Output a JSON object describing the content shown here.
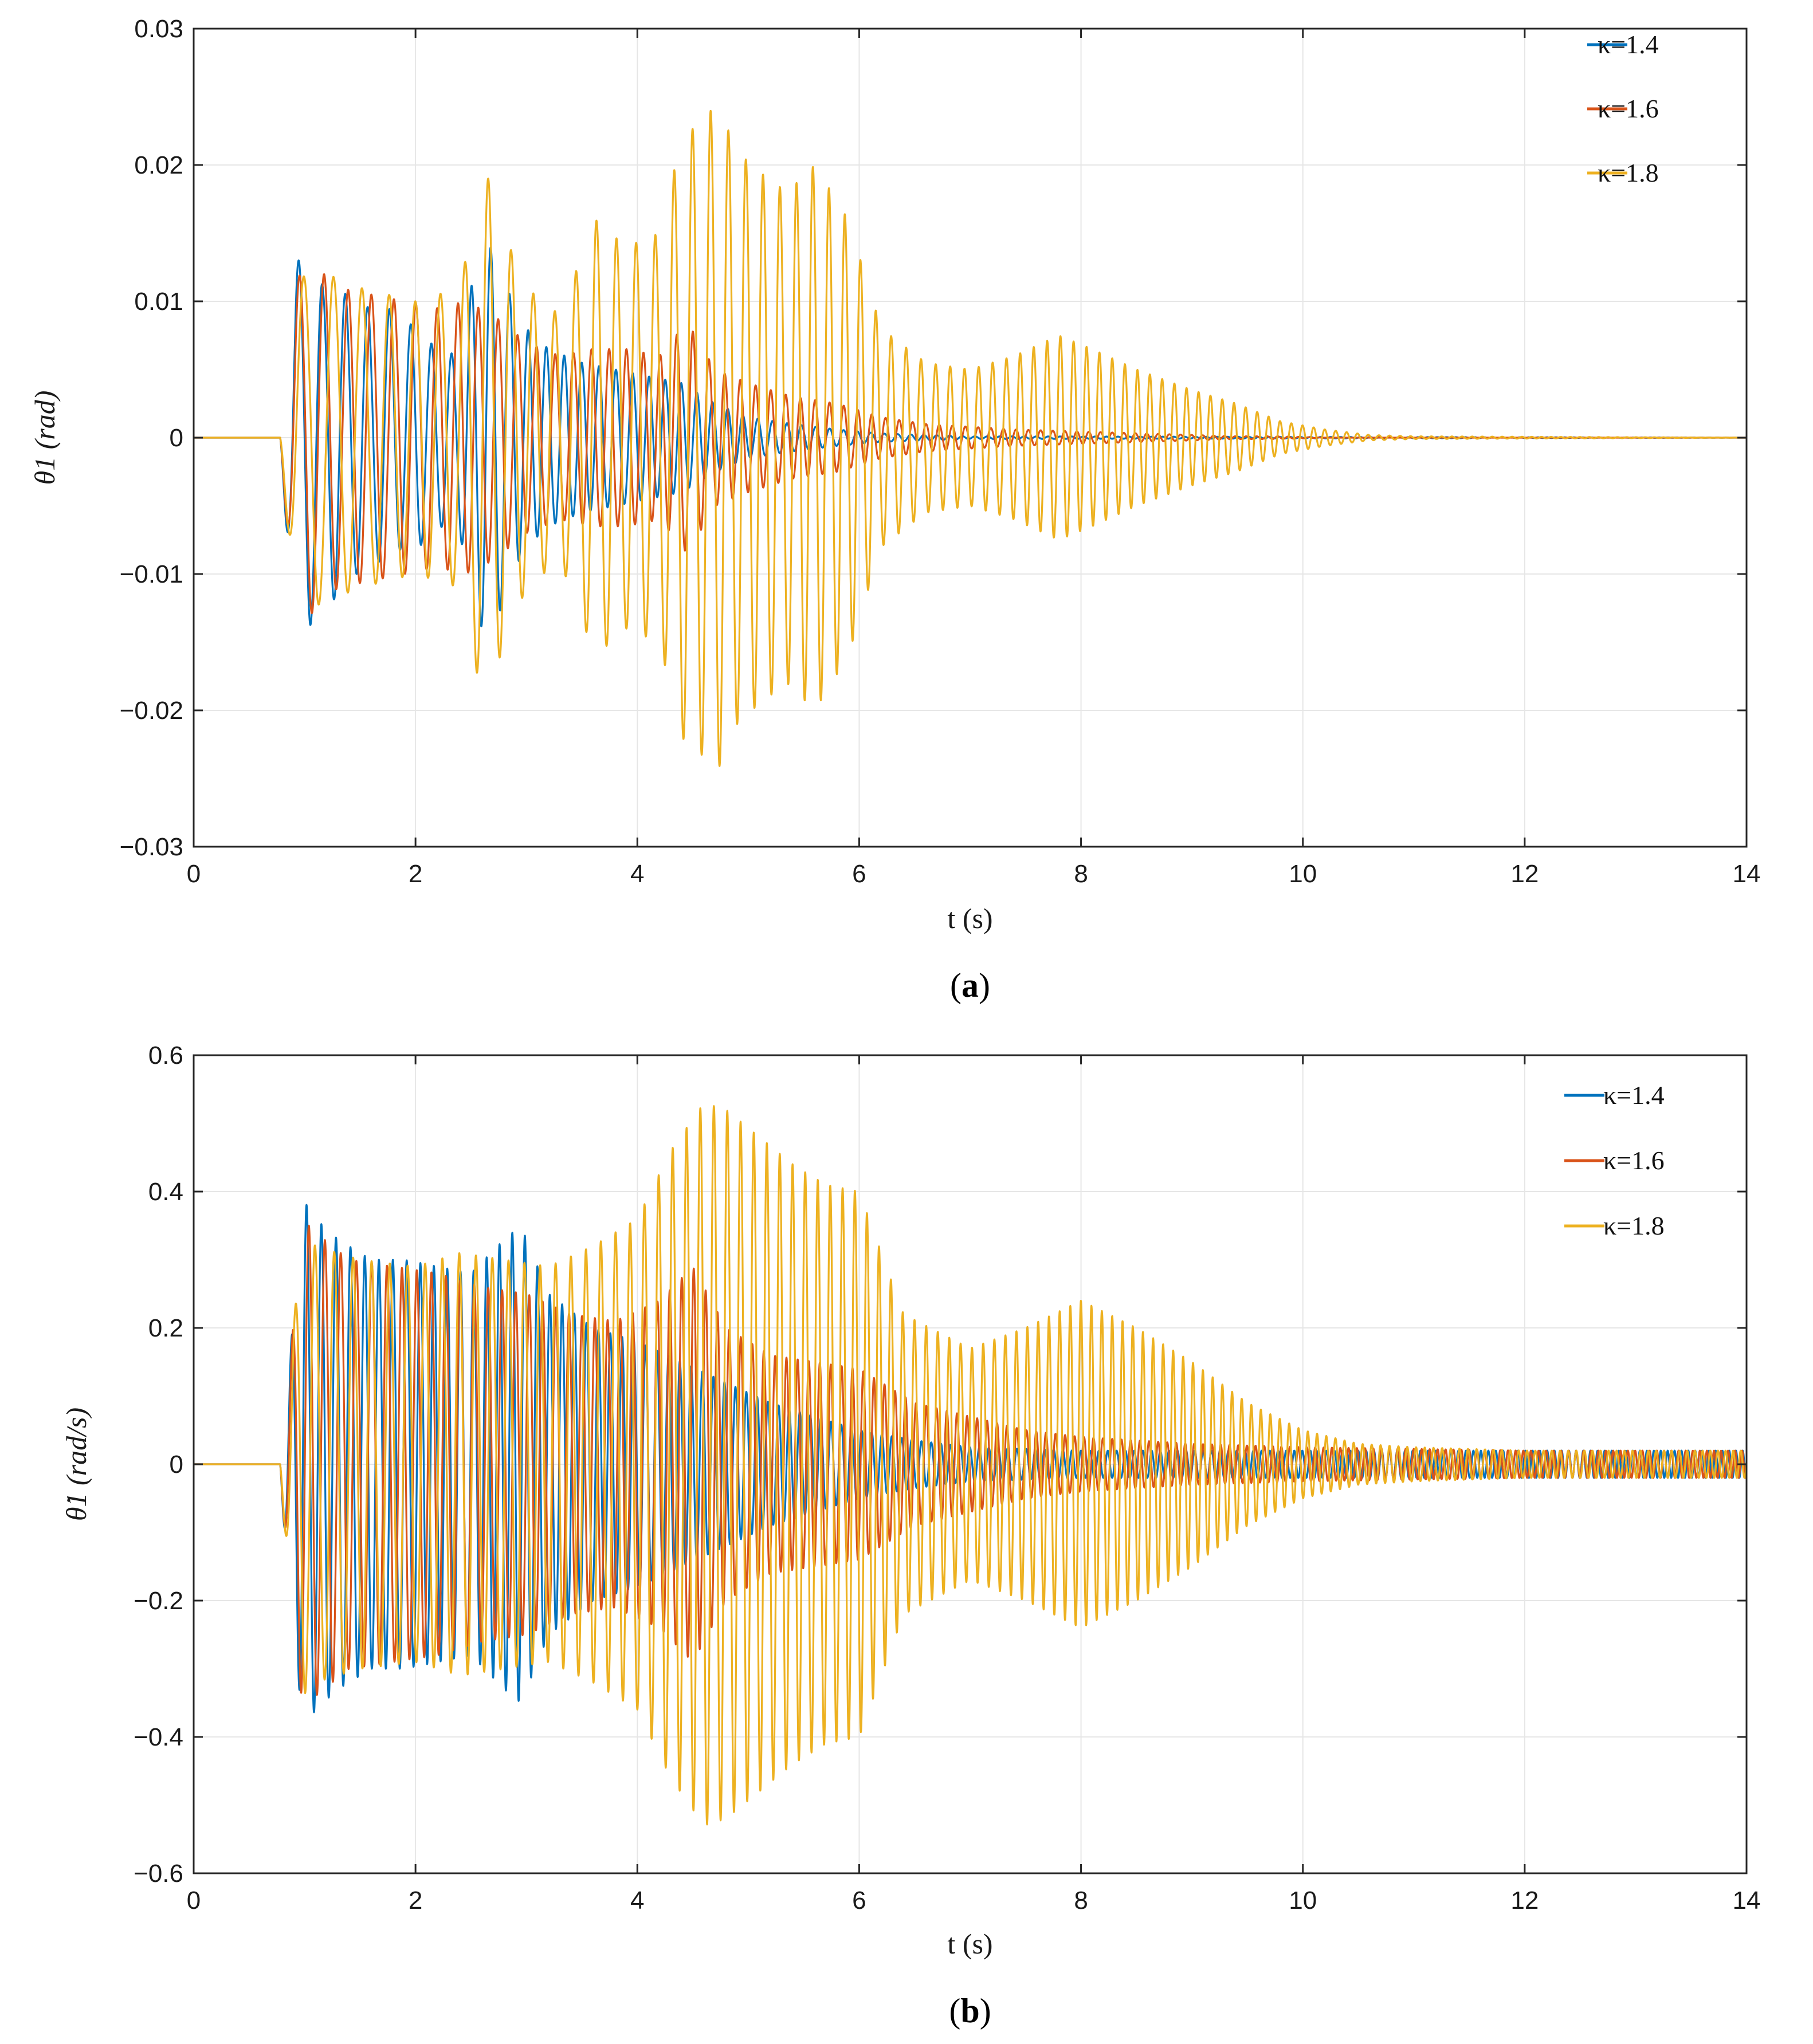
{
  "chart_data": [
    {
      "type": "line",
      "panel_label": "a",
      "title": "",
      "xlabel": "t (s)",
      "ylabel": "θ1 (rad)",
      "xlim": [
        0,
        14
      ],
      "ylim": [
        -0.03,
        0.03
      ],
      "xticks": [
        0,
        2,
        4,
        6,
        8,
        10,
        12,
        14
      ],
      "yticks": [
        -0.03,
        -0.02,
        -0.01,
        0,
        0.01,
        0.02,
        0.03
      ],
      "xtick_labels": [
        "0",
        "2",
        "4",
        "6",
        "8",
        "10",
        "12",
        "14"
      ],
      "ytick_labels": [
        "−0.03",
        "−0.02",
        "−0.01",
        "0",
        "0.01",
        "0.02",
        "0.03"
      ],
      "grid": true,
      "legend_position": "top-right",
      "series": [
        {
          "name": "κ=1.4",
          "color": "#0072BD",
          "t": [
            0.75,
            0.92,
            1.05,
            1.17,
            1.28,
            1.4,
            1.52,
            1.64,
            1.76,
            1.88,
            2.0,
            2.12,
            2.25,
            2.37,
            2.5,
            2.62,
            2.75,
            2.87,
            3.0,
            3.2,
            3.5,
            3.8,
            4.1,
            4.4,
            4.7,
            5.0,
            5.4,
            5.8,
            6.2,
            7.0,
            14.0
          ],
          "env": [
            0.0,
            0.0128,
            0.0138,
            0.011,
            0.012,
            0.01,
            0.01,
            0.009,
            0.0095,
            0.008,
            0.0085,
            0.007,
            0.0065,
            0.006,
            0.011,
            0.0147,
            0.013,
            0.01,
            0.008,
            0.0065,
            0.0055,
            0.005,
            0.0045,
            0.004,
            0.0025,
            0.0015,
            0.001,
            0.0006,
            0.0003,
            0.0001,
            0.0
          ],
          "freq": 4.2,
          "start": 0.78
        },
        {
          "name": "κ=1.6",
          "color": "#D95319",
          "t": [
            0.75,
            0.92,
            1.05,
            1.3,
            1.6,
            1.9,
            2.2,
            2.45,
            2.7,
            3.0,
            3.3,
            3.6,
            3.9,
            4.2,
            4.45,
            4.7,
            5.0,
            5.4,
            5.8,
            6.2,
            6.6,
            7.0,
            7.4,
            7.8,
            8.2,
            8.6,
            9.0,
            9.4,
            9.8,
            10.2,
            14.0
          ],
          "env": [
            0.0,
            0.0115,
            0.013,
            0.011,
            0.0105,
            0.01,
            0.0095,
            0.01,
            0.009,
            0.007,
            0.006,
            0.0065,
            0.0065,
            0.006,
            0.0085,
            0.005,
            0.004,
            0.003,
            0.0025,
            0.0015,
            0.001,
            0.0008,
            0.0006,
            0.0005,
            0.0004,
            0.0003,
            0.0002,
            0.0001,
            0.0001,
            0.0,
            0.0
          ],
          "freq": 4.0,
          "start": 0.78
        },
        {
          "name": "κ=1.8",
          "color": "#EDB120",
          "t": [
            0.75,
            0.92,
            1.05,
            1.5,
            2.0,
            2.4,
            2.62,
            2.8,
            3.0,
            3.3,
            3.62,
            3.9,
            4.2,
            4.4,
            4.55,
            4.72,
            4.9,
            5.1,
            5.35,
            5.6,
            5.9,
            6.2,
            6.6,
            7.0,
            7.4,
            7.8,
            8.1,
            8.5,
            9.0,
            9.4,
            9.8,
            10.2,
            10.6,
            11.0,
            14.0
          ],
          "env": [
            0.0,
            0.011,
            0.0125,
            0.011,
            0.01,
            0.011,
            0.02,
            0.015,
            0.011,
            0.009,
            0.016,
            0.014,
            0.015,
            0.022,
            0.023,
            0.0245,
            0.021,
            0.0195,
            0.018,
            0.02,
            0.016,
            0.008,
            0.0055,
            0.005,
            0.006,
            0.0075,
            0.0065,
            0.005,
            0.0035,
            0.0025,
            0.0012,
            0.0006,
            0.0002,
            0.0001,
            0.0
          ],
          "freq": 3.2,
          "start": 0.78
        }
      ]
    },
    {
      "type": "line",
      "panel_label": "b",
      "title": "",
      "xlabel": "t (s)",
      "ylabel": "θ̇1 (rad/s)",
      "xlim": [
        0,
        14
      ],
      "ylim": [
        -0.6,
        0.6
      ],
      "xticks": [
        0,
        2,
        4,
        6,
        8,
        10,
        12,
        14
      ],
      "yticks": [
        -0.6,
        -0.4,
        -0.2,
        0,
        0.2,
        0.4,
        0.6
      ],
      "xtick_labels": [
        "0",
        "2",
        "4",
        "6",
        "8",
        "10",
        "12",
        "14"
      ],
      "ytick_labels": [
        "−0.6",
        "−0.4",
        "−0.2",
        "0",
        "0.2",
        "0.4",
        "0.6"
      ],
      "grid": true,
      "legend_position": "top-right",
      "series": [
        {
          "name": "κ=1.4",
          "color": "#0072BD",
          "t": [
            0.75,
            0.88,
            0.98,
            1.1,
            1.3,
            1.6,
            1.9,
            2.2,
            2.5,
            2.8,
            2.95,
            3.2,
            3.6,
            4.0,
            4.4,
            4.8,
            5.2,
            5.6,
            6.0,
            6.5,
            7.0,
            8.0,
            10.0,
            12.0,
            14.0
          ],
          "env": [
            0.0,
            0.18,
            0.39,
            0.36,
            0.33,
            0.3,
            0.3,
            0.29,
            0.28,
            0.33,
            0.35,
            0.25,
            0.2,
            0.18,
            0.15,
            0.12,
            0.09,
            0.07,
            0.05,
            0.035,
            0.025,
            0.02,
            0.02,
            0.02,
            0.02
          ],
          "freq": 7.0,
          "start": 0.78
        },
        {
          "name": "κ=1.6",
          "color": "#D95319",
          "t": [
            0.75,
            0.88,
            0.98,
            1.1,
            1.4,
            1.8,
            2.2,
            2.6,
            3.0,
            3.4,
            3.8,
            4.2,
            4.5,
            4.8,
            5.2,
            5.6,
            6.0,
            6.5,
            7.0,
            7.5,
            8.0,
            9.0,
            10.0,
            12.0,
            14.0
          ],
          "env": [
            0.0,
            0.17,
            0.36,
            0.34,
            0.3,
            0.29,
            0.28,
            0.26,
            0.25,
            0.22,
            0.21,
            0.24,
            0.29,
            0.2,
            0.16,
            0.15,
            0.14,
            0.09,
            0.07,
            0.05,
            0.04,
            0.03,
            0.025,
            0.02,
            0.02
          ],
          "freq": 6.4,
          "start": 0.78
        },
        {
          "name": "κ=1.8",
          "color": "#EDB120",
          "t": [
            0.75,
            0.88,
            0.98,
            1.1,
            1.5,
            2.0,
            2.4,
            2.8,
            3.2,
            3.6,
            4.0,
            4.3,
            4.6,
            4.8,
            5.1,
            5.4,
            5.7,
            6.0,
            6.4,
            7.0,
            7.5,
            8.0,
            8.5,
            9.0,
            9.5,
            10.0,
            10.5,
            11.0,
            12.0,
            14.0
          ],
          "env": [
            0.0,
            0.17,
            0.34,
            0.32,
            0.3,
            0.29,
            0.31,
            0.3,
            0.29,
            0.32,
            0.36,
            0.46,
            0.53,
            0.52,
            0.48,
            0.44,
            0.41,
            0.4,
            0.22,
            0.17,
            0.2,
            0.24,
            0.2,
            0.15,
            0.09,
            0.05,
            0.03,
            0.025,
            0.02,
            0.02
          ],
          "freq": 5.2,
          "start": 0.78
        }
      ]
    }
  ]
}
